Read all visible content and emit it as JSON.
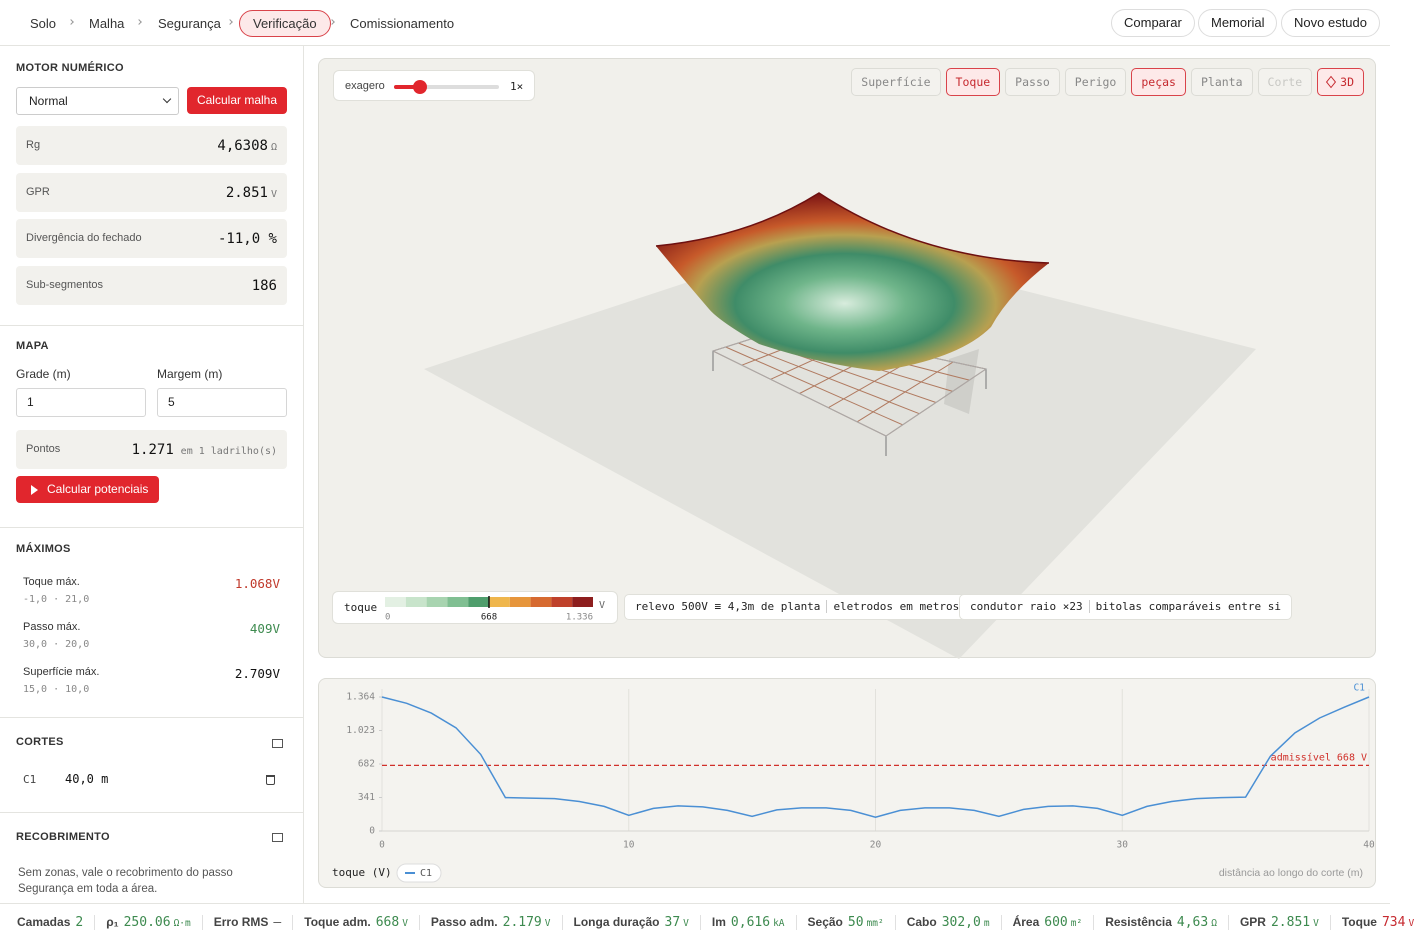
{
  "nav": {
    "steps": [
      "Solo",
      "Malha",
      "Segurança",
      "Verificação",
      "Comissionamento"
    ],
    "actions": [
      "Comparar",
      "Memorial",
      "Novo estudo"
    ]
  },
  "sidebar": {
    "motor": {
      "title": "MOTOR NUMÉRICO",
      "mode": "Normal",
      "button": "Calcular malha",
      "metrics": [
        {
          "label": "Rg",
          "value": "4,6308",
          "unit": "Ω"
        },
        {
          "label": "GPR",
          "value": "2.851",
          "unit": "V"
        },
        {
          "label": "Divergência do fechado",
          "value": "-11,0 %"
        },
        {
          "label": "Sub-segmentos",
          "value": "186"
        }
      ]
    },
    "mapa": {
      "title": "MAPA",
      "fields": [
        {
          "label": "Grade (m)",
          "value": "1"
        },
        {
          "label": "Margem (m)",
          "value": "5"
        }
      ],
      "points": {
        "label": "Pontos",
        "value": "1.271",
        "note": "em 1 ladrilho(s)"
      },
      "button": "Calcular potenciais"
    },
    "maximos": {
      "title": "MÁXIMOS",
      "items": [
        {
          "label": "Toque máx.",
          "value": "1.068",
          "unit": "V",
          "location": "-1,0 · 21,0"
        },
        {
          "label": "Passo máx.",
          "value": "409",
          "unit": "V",
          "location": "30,0 · 20,0"
        },
        {
          "label": "Superfície máx.",
          "value": "2.709",
          "unit": "V",
          "location": "15,0 · 10,0"
        }
      ]
    },
    "cortes": {
      "title": "CORTES",
      "items": [
        {
          "name": "C1",
          "length": "40,0 m"
        }
      ]
    },
    "recobrimento": {
      "title": "RECOBRIMENTO",
      "text": "Sem zonas, vale o recobrimento do passo Segurança em toda a área."
    }
  },
  "viewer": {
    "exaggeration_label": "exagero",
    "exaggeration": "1×",
    "modes": [
      "Superfície",
      "Toque",
      "Passo",
      "Perigo",
      "peças",
      "Planta",
      "Corte",
      "3D"
    ],
    "colorbar": {
      "label": "toque",
      "unit": "V",
      "clim": [
        0,
        1336
      ],
      "ticks": [
        0,
        668,
        {
          "value": 1336,
          "label": "1.336"
        }
      ],
      "colors": [
        "#e3f0e3",
        "#c8e4cb",
        "#a8d4b0",
        "#80bf92",
        "#4f9e6c",
        "#efb64c",
        "#e6953b",
        "#d66a30",
        "#bf412b",
        "#8d1e1e"
      ]
    },
    "notes": [
      [
        "relevo 500V ≡ 4,3m de planta",
        "eletrodos em metros"
      ],
      [
        "condutor raio ×23",
        "bitolas comparáveis entre si"
      ]
    ]
  },
  "chart_data": {
    "type": "line",
    "x": [
      0,
      1,
      2,
      3,
      4,
      5,
      6,
      7,
      8,
      9,
      10,
      11,
      12,
      13,
      14,
      15,
      16,
      17,
      18,
      19,
      20,
      21,
      22,
      23,
      24,
      25,
      26,
      27,
      28,
      29,
      30,
      31,
      32,
      33,
      34,
      35,
      36,
      37,
      38,
      39,
      40
    ],
    "series": [
      {
        "name": "C1",
        "color": "#4a8fd4",
        "values": [
          1364,
          1300,
          1200,
          1050,
          780,
          340,
          335,
          330,
          300,
          250,
          160,
          230,
          255,
          245,
          210,
          150,
          215,
          235,
          235,
          210,
          140,
          210,
          235,
          235,
          210,
          150,
          220,
          250,
          255,
          230,
          160,
          250,
          300,
          330,
          340,
          345,
          760,
          1000,
          1150,
          1260,
          1364
        ]
      }
    ],
    "xlim": [
      0,
      40
    ],
    "xticks": [
      0,
      10,
      20,
      30,
      40
    ],
    "ylim": [
      0,
      1364
    ],
    "yticks": [
      0,
      341,
      682,
      {
        "value": 1023,
        "label": "1.023"
      },
      {
        "value": 1364,
        "label": "1.364"
      }
    ],
    "y_label": "toque (V)",
    "x_label": "distância ao longo do corte (m)",
    "threshold": {
      "value": 668,
      "label": "admissível 668 V",
      "color": "#d0302a"
    },
    "grid": true
  },
  "status": [
    {
      "label": "Camadas",
      "value": "2"
    },
    {
      "label": "ρ₁",
      "value": "250.06",
      "unit": "Ω·m"
    },
    {
      "label": "Erro RMS",
      "value": "—"
    },
    {
      "label": "Toque adm.",
      "value": "668",
      "unit": "V"
    },
    {
      "label": "Passo adm.",
      "value": "2.179",
      "unit": "V"
    },
    {
      "label": "Longa duração",
      "value": "37",
      "unit": "V"
    },
    {
      "label": "Im",
      "value": "0,616",
      "unit": "kA"
    },
    {
      "label": "Seção",
      "value": "50",
      "unit": "mm²"
    },
    {
      "label": "Cabo",
      "value": "302,0",
      "unit": "m"
    },
    {
      "label": "Área",
      "value": "600",
      "unit": "m²"
    },
    {
      "label": "Resistência",
      "value": "4,63",
      "unit": "Ω"
    },
    {
      "label": "GPR",
      "value": "2.851",
      "unit": "V"
    },
    {
      "label": "Toque",
      "value": "734",
      "unit": "V"
    }
  ]
}
